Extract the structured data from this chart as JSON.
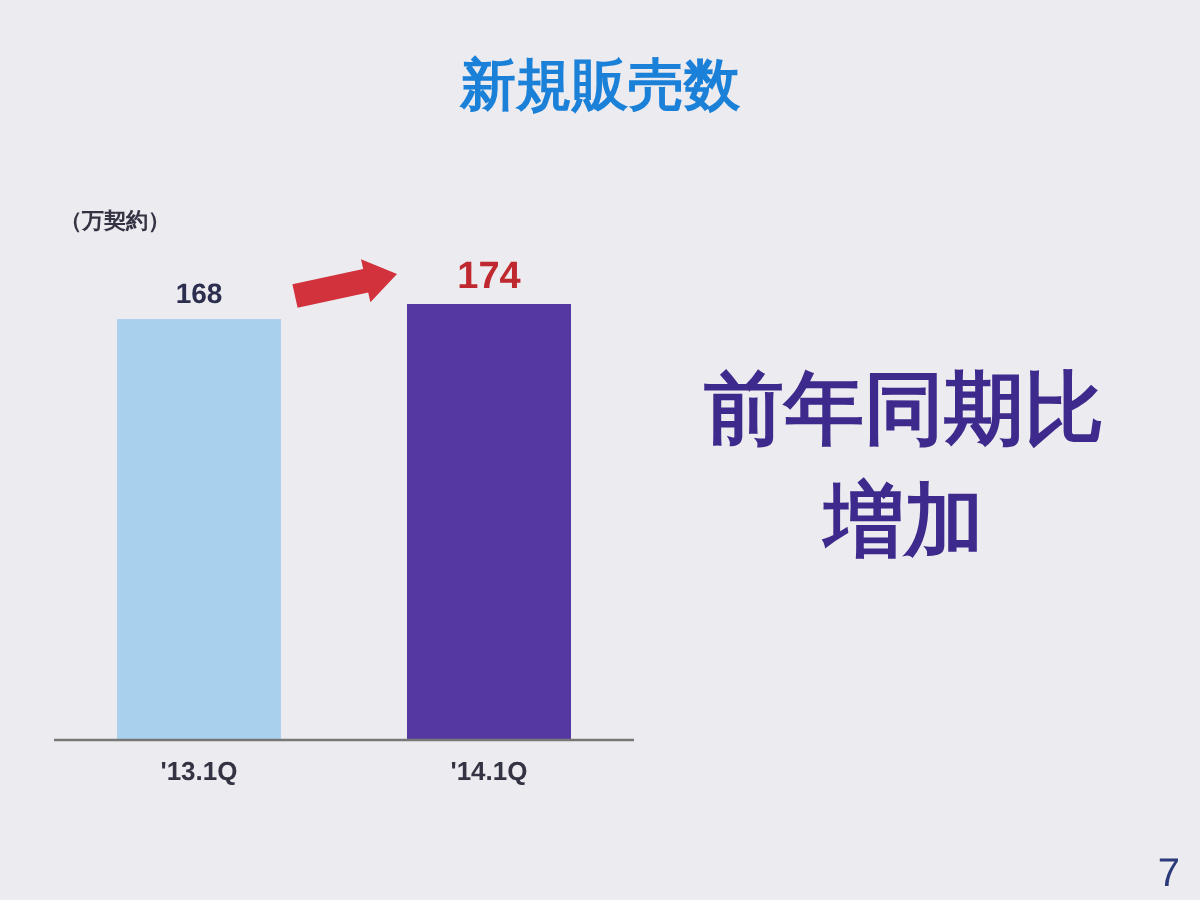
{
  "chart_data": {
    "type": "bar",
    "title": "新規販売数",
    "ylabel": "（万契約）",
    "categories": [
      "'13.1Q",
      "'14.1Q"
    ],
    "values": [
      168,
      174
    ],
    "colors": [
      "#a9d1ee",
      "#5538a2"
    ],
    "data_labels": true,
    "annotations": [
      "前年同期比",
      "増加",
      "7"
    ]
  }
}
